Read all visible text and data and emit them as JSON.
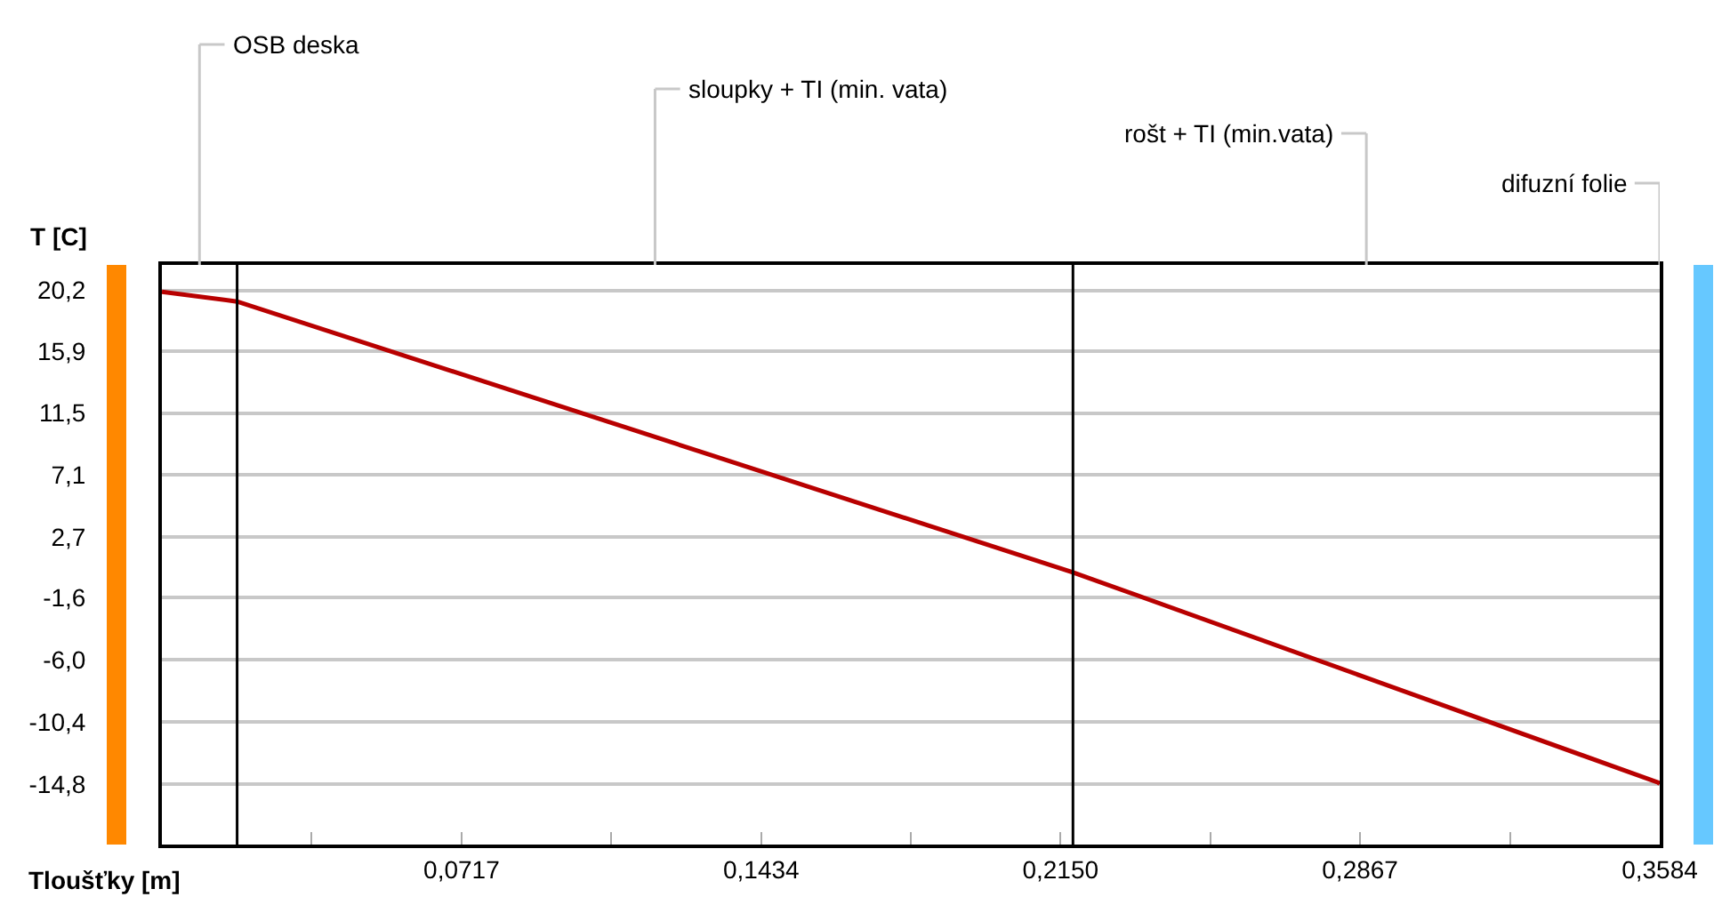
{
  "chart_data": {
    "type": "line",
    "xlabel": "Tloušťky [m]",
    "ylabel": "T [C]",
    "x": [
      0,
      0.018,
      0.218,
      0.358,
      0.3584
    ],
    "series": [
      {
        "color": "#b80000",
        "values": [
          20.1,
          19.4,
          0.2,
          -14.7,
          -14.8
        ]
      }
    ],
    "xlim": [
      0,
      0.3584
    ],
    "xticks": [
      {
        "value": 0.0358,
        "label": null
      },
      {
        "value": 0.0717,
        "label": "0,0717"
      },
      {
        "value": 0.1075,
        "label": null
      },
      {
        "value": 0.1434,
        "label": "0,1434"
      },
      {
        "value": 0.1792,
        "label": null
      },
      {
        "value": 0.215,
        "label": "0,2150"
      },
      {
        "value": 0.2509,
        "label": null
      },
      {
        "value": 0.2867,
        "label": "0,2867"
      },
      {
        "value": 0.3226,
        "label": null
      },
      {
        "value": 0.3584,
        "label": "0,3584"
      }
    ],
    "ylim": [
      -19.1,
      22.0
    ],
    "yticks": [
      {
        "value": 20.2,
        "label": "20,2"
      },
      {
        "value": 15.9,
        "label": "15,9"
      },
      {
        "value": 11.5,
        "label": "11,5"
      },
      {
        "value": 7.1,
        "label": "7,1"
      },
      {
        "value": 2.7,
        "label": "2,7"
      },
      {
        "value": -1.6,
        "label": "-1,6"
      },
      {
        "value": -6.0,
        "label": "-6,0"
      },
      {
        "value": -10.4,
        "label": "-10,4"
      },
      {
        "value": -14.8,
        "label": "-14,8"
      }
    ],
    "ref_lines": [
      {
        "axis": "x",
        "value": 0.018,
        "color": "#000000"
      },
      {
        "axis": "x",
        "value": 0.218,
        "color": "#000000"
      }
    ],
    "annotations": [
      "OSB deska",
      "sloupky + TI (min. vata)",
      "rošt + TI (min.vata)",
      "difuzní folie"
    ],
    "grid": "y",
    "marker": "none",
    "line_style": "solid"
  }
}
